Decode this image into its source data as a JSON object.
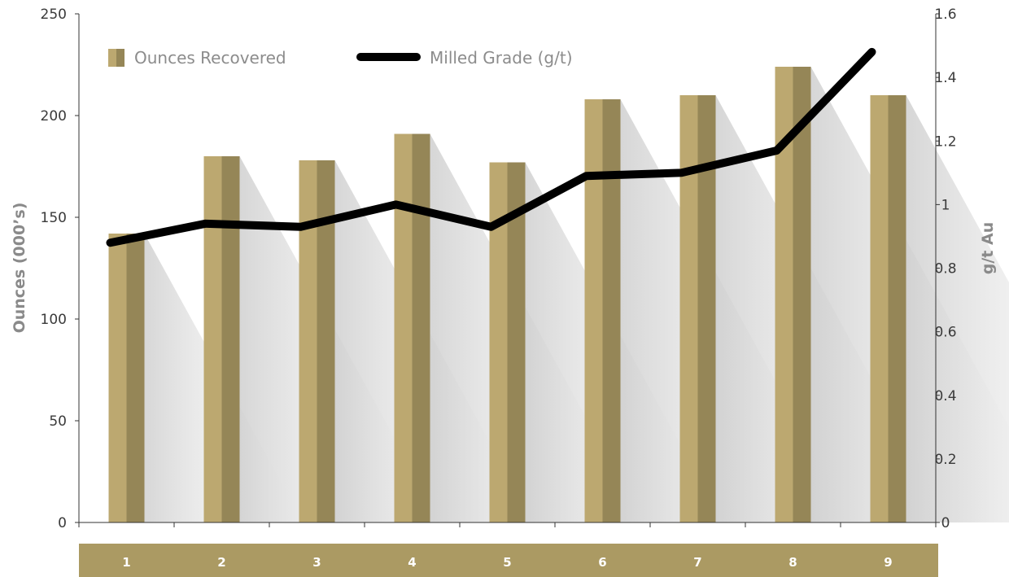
{
  "chart_data": {
    "type": "bar",
    "categories": [
      "1",
      "2",
      "3",
      "4",
      "5",
      "6",
      "7",
      "8",
      "9"
    ],
    "series": [
      {
        "name": "Ounces Recovered",
        "kind": "bar",
        "axis": "left",
        "values": [
          142,
          180,
          178,
          191,
          177,
          208,
          210,
          224,
          210
        ]
      },
      {
        "name": "Milled Grade (g/t)",
        "kind": "line",
        "axis": "right",
        "values": [
          0.88,
          0.94,
          0.93,
          1.0,
          0.93,
          1.09,
          1.1,
          1.17,
          1.48
        ]
      }
    ],
    "ylabel": "Ounces (000’s)",
    "y2label": "g/t Au",
    "ylim": [
      0,
      250
    ],
    "y2lim": [
      0,
      1.6
    ],
    "yticks": [
      "0",
      "50",
      "100",
      "150",
      "200",
      "250"
    ],
    "y2ticks": [
      "0",
      "0.2",
      "0.4",
      "0.6",
      "0.8",
      "1",
      "1.2",
      "1.4",
      "1.6"
    ],
    "legend_position": "top-left",
    "grid": false,
    "colors": {
      "bar_light": "#bca870",
      "bar_dark": "#958657",
      "category_band": "#ab9a63",
      "line": "#000000",
      "axis": "#333333",
      "axis_title": "#8a8a8a"
    }
  }
}
